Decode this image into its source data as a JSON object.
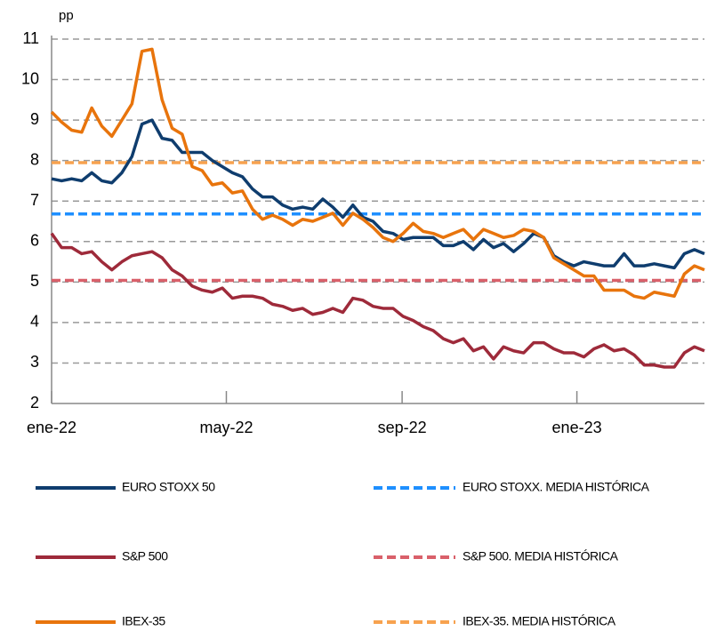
{
  "chart_data": {
    "type": "line",
    "y_label": "pp",
    "x": [
      0,
      1,
      2,
      3,
      4,
      5,
      6,
      7,
      8,
      9,
      10,
      11,
      12,
      13,
      14,
      15,
      16,
      17,
      18,
      19,
      20,
      21,
      22,
      23,
      24,
      25,
      26,
      27,
      28,
      29,
      30,
      31,
      32,
      33,
      34,
      35,
      36,
      37,
      38,
      39,
      40,
      41,
      42,
      43,
      44,
      45,
      46,
      47,
      48,
      49,
      50,
      51,
      52,
      53,
      54,
      55,
      56,
      57,
      58,
      59,
      60,
      61,
      62,
      63,
      64,
      65
    ],
    "xlim": [
      0,
      65
    ],
    "xticks": [
      {
        "value": 0,
        "label": "ene-22"
      },
      {
        "value": 17.4,
        "label": "may-22"
      },
      {
        "value": 34.9,
        "label": "sep-22"
      },
      {
        "value": 52.3,
        "label": "ene-23"
      }
    ],
    "ylim": [
      2,
      11
    ],
    "yticks": [
      2,
      3,
      4,
      5,
      6,
      7,
      8,
      9,
      10,
      11
    ],
    "grid": true,
    "series": [
      {
        "name": "EURO STOXX 50",
        "color": "#0f3d6e",
        "values": [
          7.55,
          7.5,
          7.55,
          7.5,
          7.7,
          7.5,
          7.45,
          7.7,
          8.1,
          8.9,
          9.0,
          8.55,
          8.5,
          8.2,
          8.2,
          8.2,
          8.0,
          7.85,
          7.7,
          7.6,
          7.3,
          7.1,
          7.1,
          6.9,
          6.8,
          6.85,
          6.8,
          7.05,
          6.85,
          6.6,
          6.9,
          6.6,
          6.5,
          6.25,
          6.2,
          6.05,
          6.1,
          6.1,
          6.1,
          5.9,
          5.9,
          6.0,
          5.8,
          6.05,
          5.85,
          5.95,
          5.75,
          5.95,
          6.2,
          6.1,
          5.65,
          5.5,
          5.4,
          5.5,
          5.45,
          5.4,
          5.4,
          5.7,
          5.4,
          5.4,
          5.45,
          5.4,
          5.35,
          5.7,
          5.8,
          5.7
        ]
      },
      {
        "name": "S&P 500",
        "color": "#9e2a3a",
        "values": [
          6.2,
          5.85,
          5.85,
          5.7,
          5.75,
          5.5,
          5.3,
          5.5,
          5.65,
          5.7,
          5.75,
          5.6,
          5.3,
          5.15,
          4.9,
          4.8,
          4.75,
          4.85,
          4.6,
          4.65,
          4.65,
          4.6,
          4.45,
          4.4,
          4.3,
          4.35,
          4.2,
          4.25,
          4.35,
          4.25,
          4.6,
          4.55,
          4.4,
          4.35,
          4.35,
          4.15,
          4.05,
          3.9,
          3.8,
          3.6,
          3.5,
          3.6,
          3.3,
          3.4,
          3.1,
          3.4,
          3.3,
          3.25,
          3.5,
          3.5,
          3.35,
          3.25,
          3.25,
          3.15,
          3.35,
          3.45,
          3.3,
          3.35,
          3.2,
          2.95,
          2.95,
          2.9,
          2.9,
          3.25,
          3.4,
          3.3
        ]
      },
      {
        "name": "IBEX-35",
        "color": "#e8740c",
        "values": [
          9.2,
          8.95,
          8.75,
          8.7,
          9.3,
          8.85,
          8.6,
          9.0,
          9.4,
          10.7,
          10.75,
          9.5,
          8.8,
          8.65,
          7.85,
          7.75,
          7.4,
          7.45,
          7.2,
          7.25,
          6.8,
          6.55,
          6.65,
          6.55,
          6.4,
          6.55,
          6.5,
          6.6,
          6.7,
          6.4,
          6.7,
          6.55,
          6.35,
          6.1,
          6.0,
          6.2,
          6.45,
          6.25,
          6.2,
          6.1,
          6.2,
          6.3,
          6.05,
          6.3,
          6.2,
          6.1,
          6.15,
          6.3,
          6.25,
          6.1,
          5.6,
          5.45,
          5.3,
          5.15,
          5.15,
          4.8,
          4.8,
          4.8,
          4.65,
          4.6,
          4.75,
          4.7,
          4.65,
          5.2,
          5.4,
          5.3
        ]
      }
    ],
    "reference_lines": [
      {
        "name": "EURO STOXX. MEDIA HISTÓRICA",
        "color": "#1e8fff",
        "value": 6.68
      },
      {
        "name": "S&P 500. MEDIA HISTÓRICA",
        "color": "#d9606a",
        "value": 5.04
      },
      {
        "name": "IBEX-35. MEDIA HISTÓRICA",
        "color": "#f7a24f",
        "value": 7.95
      }
    ]
  }
}
